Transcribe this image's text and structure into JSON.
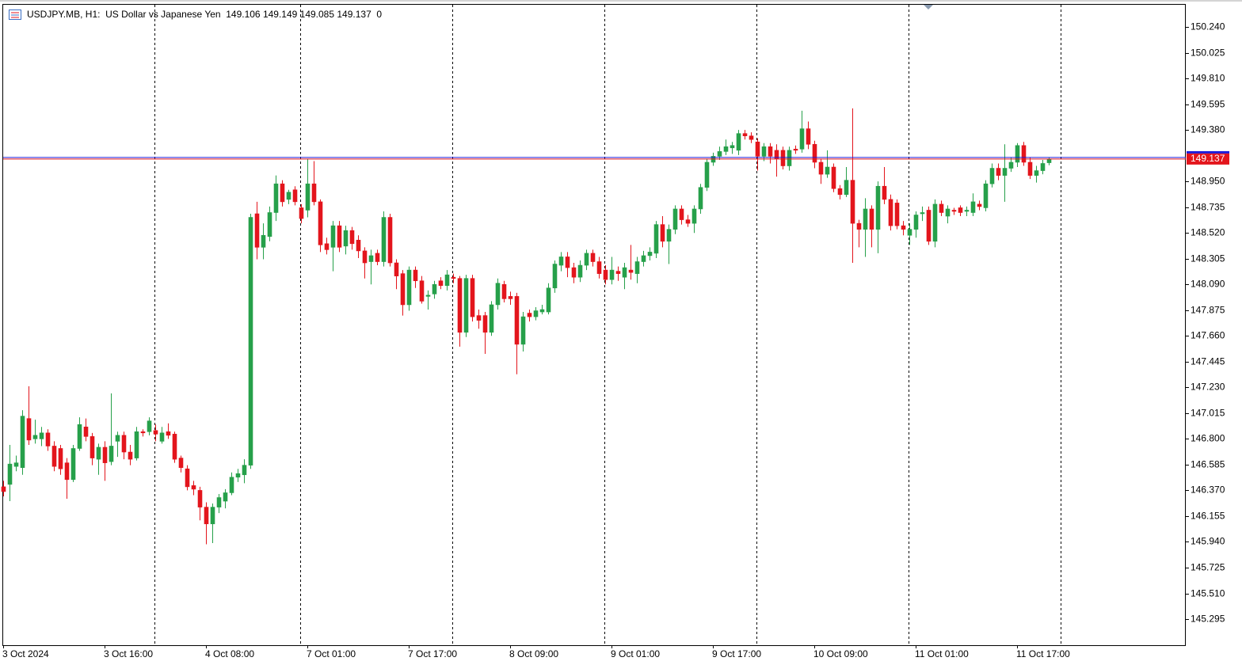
{
  "chart_data": {
    "type": "candlestick",
    "title": "USDJPY.MB, H1:  US Dollar vs Japanese Yen  149.106 149.149 149.085 149.137  0",
    "x": [
      "3 Oct 2024",
      null,
      null,
      null,
      null,
      null,
      null,
      null,
      null,
      null,
      null,
      null,
      null,
      null,
      null,
      null,
      "3 Oct 16:00",
      null,
      null,
      null,
      null,
      null,
      null,
      null,
      null,
      null,
      null,
      null,
      null,
      null,
      null,
      null,
      "4 Oct 08:00",
      null,
      null,
      null,
      null,
      null,
      null,
      null,
      null,
      null,
      null,
      null,
      null,
      null,
      null,
      null,
      "7 Oct 01:00",
      null,
      null,
      null,
      null,
      null,
      null,
      null,
      null,
      null,
      null,
      null,
      null,
      null,
      null,
      null,
      "7 Oct 17:00",
      null,
      null,
      null,
      null,
      null,
      null,
      null,
      null,
      null,
      null,
      null,
      null,
      null,
      null,
      null,
      "8 Oct 09:00",
      null,
      null,
      null,
      null,
      null,
      null,
      null,
      null,
      null,
      null,
      null,
      null,
      null,
      null,
      null,
      "9 Oct 01:00",
      null,
      null,
      null,
      null,
      null,
      null,
      null,
      null,
      null,
      null,
      null,
      null,
      null,
      null,
      null,
      "9 Oct 17:00",
      null,
      null,
      null,
      null,
      null,
      null,
      null,
      null,
      null,
      null,
      null,
      null,
      null,
      null,
      null,
      "10 Oct 09:00",
      null,
      null,
      null,
      null,
      null,
      null,
      null,
      null,
      null,
      null,
      null,
      null,
      null,
      null,
      null,
      "11 Oct 01:00",
      null,
      null,
      null,
      null,
      null,
      null,
      null,
      null,
      null,
      null,
      null,
      null,
      null,
      null,
      null,
      "11 Oct 17:00",
      null,
      null,
      null,
      null,
      null
    ],
    "open": [
      146.4,
      146.42,
      146.57,
      146.56,
      146.97,
      146.8,
      146.8,
      146.85,
      146.74,
      146.72,
      146.6,
      146.46,
      146.72,
      146.9,
      146.82,
      146.63,
      146.73,
      146.61,
      146.78,
      146.83,
      146.69,
      146.64,
      146.86,
      146.86,
      146.87,
      146.78,
      146.86,
      146.84,
      146.64,
      146.55,
      146.41,
      146.37,
      146.23,
      146.09,
      146.23,
      146.28,
      146.35,
      146.48,
      146.5,
      146.58,
      148.68,
      148.4,
      148.49,
      148.69,
      148.93,
      148.8,
      148.88,
      148.73,
      148.71,
      148.93,
      148.78,
      148.43,
      148.4,
      148.58,
      148.41,
      148.54,
      148.46,
      148.37,
      148.28,
      148.35,
      148.28,
      148.65,
      148.27,
      148.18,
      147.92,
      148.21,
      148.12,
      147.99,
      148.01,
      148.12,
      148.08,
      148.15,
      148.14,
      147.69,
      148.14,
      147.83,
      147.83,
      147.69,
      147.92,
      148.09,
      147.99,
      147.99,
      147.59,
      147.85,
      147.82,
      147.86,
      147.86,
      148.06,
      148.25,
      148.32,
      148.23,
      148.15,
      148.25,
      148.35,
      148.28,
      148.21,
      148.13,
      148.2,
      148.15,
      148.21,
      148.18,
      148.28,
      148.33,
      148.35,
      148.59,
      148.45,
      148.55,
      148.72,
      148.63,
      148.6,
      148.72,
      148.9,
      149.11,
      149.16,
      149.2,
      149.23,
      149.21,
      149.35,
      149.33,
      149.28,
      149.16,
      149.24,
      149.21,
      149.21,
      149.08,
      149.22,
      149.22,
      149.39,
      149.26,
      149.11,
      149.01,
      149.07,
      148.89,
      148.84,
      148.96,
      148.6,
      148.55,
      148.72,
      148.55,
      148.91,
      148.8,
      148.77,
      148.58,
      148.5,
      148.55,
      148.68,
      148.71,
      148.45,
      148.76,
      148.66,
      148.71,
      148.73,
      148.7,
      148.69,
      148.76,
      148.73,
      148.93,
      149.06,
      149.0,
      149.06,
      149.11,
      149.25,
      149.11,
      149.0,
      149.04,
      149.106
    ],
    "high": [
      146.45,
      146.75,
      146.66,
      147.04,
      147.24,
      146.96,
      146.9,
      146.88,
      146.78,
      146.75,
      146.64,
      146.75,
      146.98,
      146.97,
      146.85,
      146.76,
      146.78,
      147.18,
      146.86,
      146.86,
      146.75,
      146.9,
      146.88,
      146.98,
      146.92,
      146.9,
      146.93,
      146.86,
      146.66,
      146.58,
      146.45,
      146.4,
      146.27,
      146.26,
      146.34,
      146.38,
      146.52,
      146.55,
      146.63,
      148.68,
      148.78,
      148.6,
      148.74,
      149.0,
      148.96,
      148.88,
      148.91,
      148.76,
      149.14,
      149.12,
      148.8,
      148.48,
      148.62,
      148.62,
      148.58,
      148.57,
      148.5,
      148.4,
      148.38,
      148.38,
      148.7,
      148.68,
      148.3,
      148.21,
      148.24,
      148.24,
      148.16,
      148.04,
      148.12,
      148.15,
      148.21,
      148.18,
      148.16,
      148.17,
      148.17,
      147.88,
      147.86,
      147.95,
      148.14,
      148.12,
      148.03,
      148.02,
      147.86,
      147.88,
      147.9,
      147.92,
      148.1,
      148.29,
      148.36,
      148.36,
      148.27,
      148.29,
      148.38,
      148.38,
      148.32,
      148.25,
      148.32,
      148.24,
      148.27,
      148.42,
      148.32,
      148.37,
      148.4,
      148.62,
      148.66,
      148.59,
      148.75,
      148.75,
      148.67,
      148.75,
      148.93,
      149.14,
      149.19,
      149.24,
      149.3,
      149.28,
      149.38,
      149.38,
      149.36,
      149.31,
      149.27,
      149.27,
      149.26,
      149.24,
      149.24,
      149.25,
      149.54,
      149.45,
      149.29,
      149.14,
      149.21,
      149.1,
      148.92,
      149.07,
      149.56,
      148.63,
      148.81,
      148.75,
      148.95,
      149.07,
      148.84,
      148.8,
      148.62,
      148.6,
      148.7,
      148.74,
      148.74,
      148.8,
      148.79,
      148.75,
      148.73,
      148.75,
      148.74,
      148.85,
      148.79,
      148.96,
      149.1,
      149.1,
      149.26,
      149.15,
      149.27,
      149.28,
      149.15,
      149.08,
      149.13,
      149.149
    ],
    "low": [
      146.32,
      146.28,
      146.53,
      146.5,
      146.75,
      146.76,
      146.74,
      146.7,
      146.53,
      146.5,
      146.3,
      146.44,
      146.7,
      146.78,
      146.58,
      146.5,
      146.45,
      146.58,
      146.65,
      146.63,
      146.58,
      146.62,
      146.82,
      146.83,
      146.78,
      146.76,
      146.8,
      146.6,
      146.52,
      146.37,
      146.33,
      146.12,
      145.92,
      145.93,
      146.18,
      146.22,
      146.33,
      146.44,
      146.43,
      146.55,
      148.3,
      148.3,
      148.45,
      148.62,
      148.74,
      148.76,
      148.75,
      148.6,
      148.65,
      148.75,
      148.36,
      148.34,
      148.2,
      148.36,
      148.34,
      148.38,
      148.31,
      148.14,
      148.09,
      148.25,
      148.24,
      148.24,
      148.05,
      147.83,
      147.87,
      148.06,
      147.93,
      147.88,
      147.97,
      148.05,
      148.04,
      148.1,
      147.57,
      147.65,
      147.78,
      147.72,
      147.51,
      147.66,
      147.88,
      147.94,
      147.92,
      147.34,
      147.53,
      147.78,
      147.79,
      147.84,
      147.84,
      148.02,
      148.2,
      148.15,
      148.1,
      148.11,
      148.21,
      148.24,
      148.14,
      148.09,
      148.09,
      148.12,
      148.05,
      148.13,
      148.1,
      148.24,
      148.29,
      148.31,
      148.4,
      148.26,
      148.51,
      148.59,
      148.57,
      148.52,
      148.68,
      148.87,
      149.08,
      149.13,
      149.17,
      149.18,
      149.17,
      149.3,
      149.27,
      149.04,
      149.12,
      149.1,
      148.99,
      149.05,
      149.04,
      149.18,
      149.19,
      149.22,
      149.06,
      148.93,
      148.98,
      148.86,
      148.8,
      148.82,
      148.27,
      148.4,
      148.32,
      148.4,
      148.35,
      148.76,
      148.54,
      148.55,
      148.5,
      148.42,
      148.48,
      148.62,
      148.42,
      148.4,
      148.66,
      148.6,
      148.67,
      148.66,
      148.66,
      148.66,
      148.71,
      148.7,
      148.9,
      148.96,
      148.78,
      149.03,
      149.07,
      149.08,
      148.97,
      148.94,
      149.01,
      149.085
    ],
    "close": [
      146.36,
      146.59,
      146.6,
      146.99,
      146.79,
      146.83,
      146.85,
      146.74,
      146.57,
      146.55,
      146.46,
      146.72,
      146.92,
      146.82,
      146.64,
      146.73,
      146.6,
      146.74,
      146.83,
      146.69,
      146.63,
      146.86,
      146.85,
      146.95,
      146.84,
      146.85,
      146.83,
      146.63,
      146.56,
      146.4,
      146.38,
      146.23,
      146.09,
      146.23,
      146.31,
      146.35,
      146.48,
      146.51,
      146.58,
      148.65,
      148.4,
      148.5,
      148.69,
      148.93,
      148.78,
      148.86,
      148.78,
      148.64,
      148.93,
      148.78,
      148.42,
      148.38,
      148.58,
      148.4,
      148.54,
      148.43,
      148.37,
      148.27,
      148.33,
      148.28,
      148.65,
      148.27,
      148.16,
      147.92,
      148.21,
      148.12,
      147.95,
      148.0,
      148.09,
      148.08,
      148.17,
      148.14,
      147.69,
      148.14,
      147.82,
      147.79,
      147.69,
      147.92,
      148.1,
      147.97,
      147.97,
      147.59,
      147.82,
      147.82,
      147.87,
      147.88,
      148.06,
      148.26,
      148.32,
      148.23,
      148.15,
      148.25,
      148.35,
      148.28,
      148.18,
      148.13,
      148.21,
      148.18,
      148.23,
      148.19,
      148.28,
      148.33,
      148.36,
      148.59,
      148.45,
      148.55,
      148.72,
      148.63,
      148.6,
      148.72,
      148.9,
      149.11,
      149.16,
      149.2,
      149.24,
      149.25,
      149.35,
      149.33,
      149.3,
      149.16,
      149.24,
      149.16,
      149.14,
      149.08,
      149.21,
      149.21,
      149.39,
      149.26,
      149.11,
      149.01,
      149.07,
      148.89,
      148.84,
      148.96,
      148.6,
      148.55,
      148.72,
      148.55,
      148.91,
      148.8,
      148.58,
      148.58,
      148.55,
      148.55,
      148.67,
      148.69,
      148.45,
      148.76,
      148.69,
      148.72,
      148.7,
      148.69,
      148.71,
      148.78,
      148.74,
      148.93,
      149.06,
      149.0,
      149.06,
      149.11,
      149.25,
      149.11,
      149.0,
      149.04,
      149.1,
      149.137
    ],
    "up_color": "#26a04a",
    "down_color": "#e3151c",
    "ylim": [
      145.077,
      150.432
    ],
    "yticks": [
      {
        "value": 150.24,
        "label": "150.240"
      },
      150.025,
      {
        "value": 149.81,
        "label": "149.810"
      },
      149.595,
      {
        "value": 149.38,
        "label": "149.380"
      },
      {
        "value": 148.95,
        "label": "148.950"
      },
      148.735,
      {
        "value": 148.52,
        "label": "148.520"
      },
      148.305,
      {
        "value": 148.09,
        "label": "148.090"
      },
      147.875,
      {
        "value": 147.66,
        "label": "147.660"
      },
      147.445,
      {
        "value": 147.23,
        "label": "147.230"
      },
      147.015,
      {
        "value": 146.8,
        "label": "146.800"
      },
      146.585,
      {
        "value": 146.37,
        "label": "146.370"
      },
      146.155,
      {
        "value": 145.94,
        "label": "145.940"
      },
      145.725,
      {
        "value": 145.51,
        "label": "145.510"
      },
      145.295
    ],
    "last_price": 149.137,
    "ask": 149.15,
    "grid": false
  }
}
